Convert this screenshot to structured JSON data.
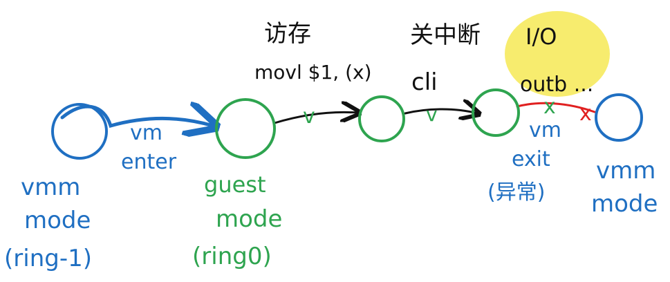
{
  "nodes": {
    "vmm_ring_minus1": {
      "line1": "vmm",
      "line2": "mode",
      "line3": "(ring-1)",
      "color": "#1f6fc2"
    },
    "guest_mode": {
      "line1": "guest",
      "line2": "mode",
      "line3": "(ring0)",
      "color": "#2ea44f"
    },
    "vmm_mode": {
      "line1": "vmm",
      "line2": "mode",
      "color": "#1f6fc2"
    }
  },
  "edges": {
    "vm_enter": {
      "line1": "vm",
      "line2": "enter",
      "color": "#1f6fc2"
    },
    "vm_exit": {
      "line1": "vm",
      "line2": "exit",
      "line3": "(异常)",
      "color": "#1f6fc2"
    }
  },
  "annotations": {
    "memory_access": {
      "line1": "访存",
      "line2": "movl $1, (x)",
      "mark": "v"
    },
    "interrupt_off": {
      "line1": "关中断",
      "line2": "cli",
      "mark": "v"
    },
    "io": {
      "line1": "I/O",
      "line2": "outb ...",
      "highlight": "#f7ec6e",
      "marks": [
        "x",
        "x"
      ],
      "mark_colors": [
        "#2ea44f",
        "#e02020"
      ]
    }
  }
}
